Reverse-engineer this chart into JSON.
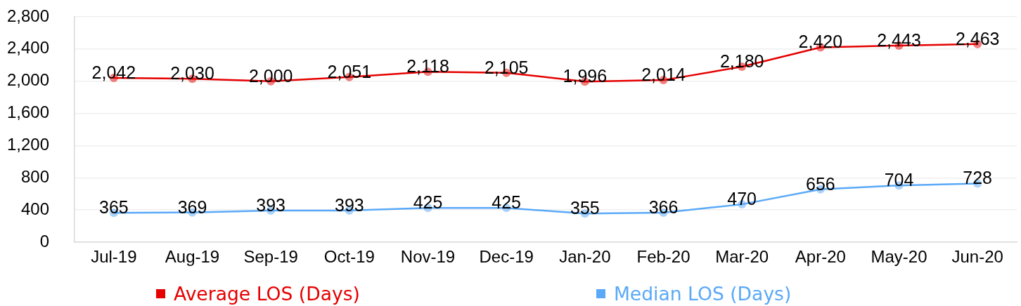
{
  "chart_data": {
    "type": "line",
    "categories": [
      "Jul-19",
      "Aug-19",
      "Sep-19",
      "Oct-19",
      "Nov-19",
      "Dec-19",
      "Jan-20",
      "Feb-20",
      "Mar-20",
      "Apr-20",
      "May-20",
      "Jun-20"
    ],
    "series": [
      {
        "name": "Average LOS (Days)",
        "color": "#e60000",
        "values": [
          2042,
          2030,
          2000,
          2051,
          2118,
          2105,
          1996,
          2014,
          2180,
          2420,
          2443,
          2463
        ],
        "value_labels": [
          "2,042",
          "2,030",
          "2,000",
          "2,051",
          "2,118",
          "2,105",
          "1,996",
          "2,014",
          "2,180",
          "2,420",
          "2,443",
          "2,463"
        ]
      },
      {
        "name": "Median LOS (Days)",
        "color": "#5aa9f8",
        "values": [
          365,
          369,
          393,
          393,
          425,
          425,
          355,
          366,
          470,
          656,
          704,
          728
        ],
        "value_labels": [
          "365",
          "369",
          "393",
          "393",
          "425",
          "425",
          "355",
          "366",
          "470",
          "656",
          "704",
          "728"
        ]
      }
    ],
    "ylim": [
      0,
      2800
    ],
    "yticks": [
      0,
      400,
      800,
      {
        "value": 1200,
        "label": "1,200"
      },
      {
        "value": 1600,
        "label": "1,600"
      },
      {
        "value": 2000,
        "label": "2,000"
      },
      {
        "value": 2400,
        "label": "2,400"
      },
      {
        "value": 2800,
        "label": "2,800"
      }
    ],
    "grid": "y",
    "legend": "bottom",
    "marker": "circle",
    "line_style": "solid"
  }
}
